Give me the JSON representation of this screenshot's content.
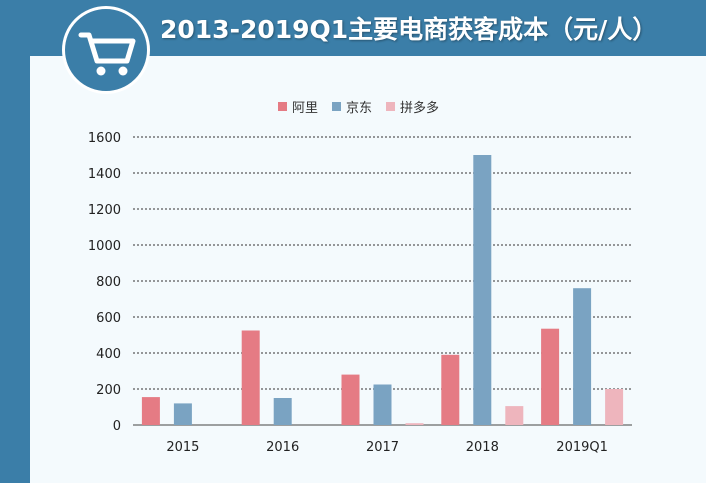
{
  "header": {
    "title": "2013-2019Q1主要电商获客成本（元/人）",
    "icon": "shopping-cart-icon"
  },
  "colors": {
    "background": "#3b7ea8",
    "panel": "#f4fafd",
    "alibaba": "#e57b84",
    "jd": "#7aa3c2",
    "pdd": "#eeb5bd"
  },
  "chart_data": {
    "type": "bar",
    "title": "2013-2019Q1主要电商获客成本（元/人）",
    "categories": [
      "2015",
      "2016",
      "2017",
      "2018",
      "2019Q1"
    ],
    "series": [
      {
        "name": "阿里",
        "values": [
          155,
          525,
          280,
          390,
          535
        ]
      },
      {
        "name": "京东",
        "values": [
          120,
          150,
          225,
          1500,
          760
        ]
      },
      {
        "name": "拼多多",
        "values": [
          0,
          0,
          10,
          105,
          200
        ]
      }
    ],
    "ylim": [
      0,
      1600
    ],
    "yticks": [
      0,
      200,
      400,
      600,
      800,
      1000,
      1200,
      1400,
      1600
    ],
    "grid": true,
    "legend": "top-center"
  }
}
